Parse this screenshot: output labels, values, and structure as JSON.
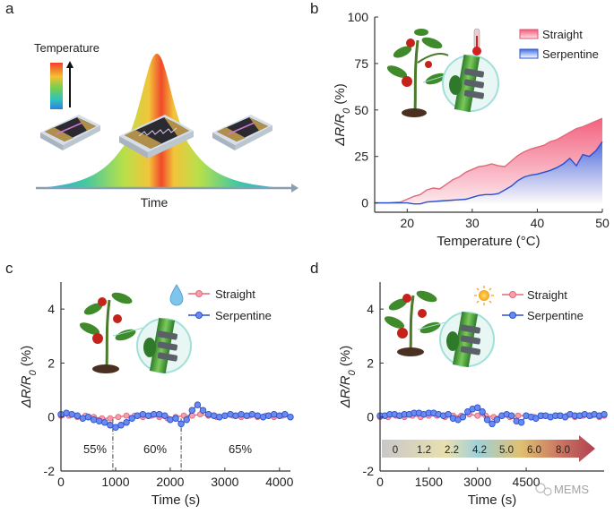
{
  "panels": {
    "a": {
      "letter": "a",
      "legend_title": "Temperature",
      "xlabel": "Time"
    },
    "b": {
      "letter": "b"
    },
    "c": {
      "letter": "c",
      "humidity_labels": [
        "55%",
        "60%",
        "65%"
      ]
    },
    "d": {
      "letter": "d",
      "intensity_labels": [
        "0",
        "1.2",
        "2.2",
        "4.2",
        "5.0",
        "6.0",
        "8.0"
      ]
    }
  },
  "watermark": "MEMS",
  "colors": {
    "straight_line": "#e06a7a",
    "straight_fill": "#f06d85",
    "serpentine_line": "#2a4fd0",
    "serpentine_fill": "#5a82ea",
    "axis": "#333333"
  },
  "chart_data": [
    {
      "id": "b",
      "type": "area",
      "xlabel": "Temperature (°C)",
      "ylabel": "ΔR/R0 (%)",
      "xlim": [
        15,
        50
      ],
      "ylim": [
        -5,
        100
      ],
      "xticks": [
        20,
        30,
        40,
        50
      ],
      "yticks": [
        0,
        25,
        50,
        75,
        100
      ],
      "legend": [
        "Straight",
        "Serpentine"
      ],
      "series": [
        {
          "name": "Straight",
          "x": [
            15,
            17,
            19,
            20,
            21,
            22,
            23,
            24,
            25,
            26,
            27,
            28,
            29,
            30,
            31,
            32,
            33,
            34,
            35,
            36,
            37,
            38,
            39,
            40,
            41,
            42,
            43,
            44,
            45,
            46,
            47,
            48,
            49,
            50
          ],
          "y": [
            0,
            0,
            0.5,
            2,
            3.5,
            4.5,
            7,
            8,
            7.5,
            10,
            12.5,
            14,
            16.5,
            18,
            19.5,
            20,
            21,
            20,
            19.5,
            22.5,
            25.5,
            27.5,
            29,
            30,
            31,
            33,
            34,
            36,
            38,
            40,
            41,
            42.5,
            44,
            45.5
          ]
        },
        {
          "name": "Serpentine",
          "x": [
            15,
            18,
            20,
            21,
            22,
            23,
            25,
            27,
            29,
            30,
            31,
            32,
            33,
            34,
            35,
            36,
            37,
            38,
            39,
            40,
            41,
            42,
            43,
            44,
            45,
            46,
            47,
            48,
            49,
            50
          ],
          "y": [
            0,
            0,
            0,
            -0.5,
            -0.5,
            0.5,
            1,
            1.5,
            2,
            3,
            4,
            4.5,
            4.5,
            5,
            7,
            9,
            12,
            14,
            15,
            15.5,
            16.5,
            17.5,
            19,
            21,
            24,
            20,
            26,
            25,
            28,
            33
          ]
        }
      ]
    },
    {
      "id": "c",
      "type": "line",
      "xlabel": "Time (s)",
      "ylabel": "ΔR/R0 (%)",
      "xlim": [
        0,
        4200
      ],
      "ylim": [
        -2,
        5
      ],
      "xticks": [
        0,
        1000,
        2000,
        3000,
        4000
      ],
      "yticks": [
        -2,
        0,
        2,
        4
      ],
      "legend": [
        "Straight",
        "Serpentine"
      ],
      "dividers": [
        950,
        2200
      ],
      "series": [
        {
          "name": "Straight",
          "x": [
            0,
            150,
            300,
            450,
            600,
            750,
            900,
            1050,
            1200,
            1350,
            1500,
            1650,
            1800,
            1950,
            2100,
            2250,
            2400,
            2550,
            2700,
            2850,
            3000,
            3150,
            3300,
            3450,
            3600,
            3750,
            3900,
            4050,
            4200
          ],
          "y": [
            0.05,
            0.05,
            0,
            0.05,
            0,
            -0.05,
            -0.05,
            0,
            0.05,
            0.05,
            0,
            0.05,
            0,
            -0.05,
            0,
            0.05,
            0.05,
            0.1,
            0.05,
            0,
            0.05,
            0.05,
            0,
            0.05,
            0,
            0.05,
            0,
            0.05,
            0
          ]
        },
        {
          "name": "Serpentine",
          "x": [
            0,
            100,
            200,
            300,
            400,
            500,
            600,
            700,
            800,
            900,
            1000,
            1100,
            1200,
            1300,
            1400,
            1500,
            1600,
            1700,
            1800,
            1900,
            2000,
            2100,
            2200,
            2300,
            2400,
            2500,
            2600,
            2700,
            2800,
            2900,
            3000,
            3100,
            3200,
            3300,
            3400,
            3500,
            3600,
            3700,
            3800,
            3900,
            4000,
            4100,
            4200
          ],
          "y": [
            0.1,
            0.15,
            0.1,
            0.05,
            -0.05,
            0,
            -0.1,
            -0.15,
            -0.2,
            -0.3,
            -0.38,
            -0.3,
            -0.2,
            -0.05,
            0.05,
            0.1,
            0.05,
            0.1,
            0.1,
            0.05,
            -0.1,
            -0.05,
            -0.25,
            -0.1,
            0.25,
            0.45,
            0.25,
            0.1,
            0.05,
            0,
            0.05,
            0.1,
            0.05,
            0.1,
            0.05,
            0.1,
            0.05,
            0,
            0.05,
            0.1,
            0.05,
            0.1,
            0
          ]
        }
      ]
    },
    {
      "id": "d",
      "type": "line",
      "xlabel": "Time (s)",
      "ylabel": "ΔR/R0 (%)",
      "xlim": [
        0,
        6900
      ],
      "ylim": [
        -2,
        5
      ],
      "xticks": [
        0,
        1500,
        3000,
        4500
      ],
      "xtick_labels": [
        "0",
        "1500",
        "3000",
        "4500"
      ],
      "yticks": [
        -2,
        0,
        2,
        4
      ],
      "legend": [
        "Straight",
        "Serpentine"
      ],
      "series": [
        {
          "name": "Straight",
          "x": [
            0,
            250,
            500,
            750,
            1000,
            1250,
            1500,
            1750,
            2000,
            2250,
            2500,
            2750,
            3000,
            3250,
            3500,
            3750,
            4000,
            4250,
            4500,
            4750,
            5000,
            5250,
            5500,
            5750,
            6000,
            6250,
            6500,
            6750,
            6900
          ],
          "y": [
            0,
            0,
            0.05,
            0,
            0.05,
            0,
            0.05,
            0.05,
            0,
            0.05,
            0.05,
            0.1,
            0.05,
            0.05,
            0,
            0.05,
            0,
            0.05,
            0.05,
            0,
            0.05,
            0,
            0.05,
            0.05,
            0,
            0.05,
            0.05,
            0,
            0.05
          ]
        },
        {
          "name": "Serpentine",
          "x": [
            0,
            150,
            300,
            450,
            600,
            750,
            900,
            1050,
            1200,
            1350,
            1500,
            1650,
            1800,
            1950,
            2100,
            2250,
            2400,
            2550,
            2700,
            2850,
            3000,
            3150,
            3300,
            3450,
            3600,
            3750,
            3900,
            4050,
            4200,
            4350,
            4500,
            4650,
            4800,
            4950,
            5100,
            5250,
            5400,
            5550,
            5700,
            5850,
            6000,
            6150,
            6300,
            6450,
            6600,
            6750,
            6900
          ],
          "y": [
            0.05,
            0.05,
            0.1,
            0.1,
            0.05,
            0.1,
            0.1,
            0.15,
            0.15,
            0.1,
            0.15,
            0.15,
            0.1,
            0.05,
            0.1,
            -0.05,
            -0.1,
            0,
            0.2,
            0.3,
            0.35,
            0.2,
            -0.1,
            -0.25,
            -0.1,
            0.05,
            0.1,
            0.05,
            -0.15,
            -0.2,
            0.05,
            0,
            -0.05,
            0.05,
            0.05,
            0,
            0.05,
            0.05,
            0,
            0.1,
            0.05,
            0.05,
            0.1,
            0.05,
            0.1,
            0.05,
            0.1
          ]
        }
      ]
    }
  ]
}
